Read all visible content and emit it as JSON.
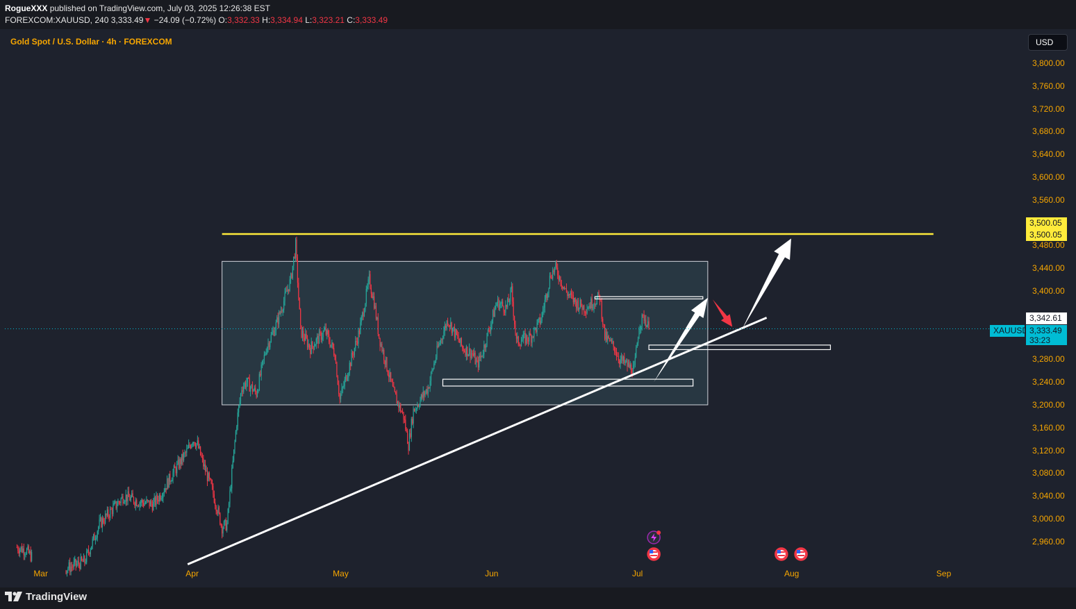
{
  "header": {
    "author": "RogueXXX",
    "published_text": "published on TradingView.com, July 03, 2025 12:26:38 EST",
    "symbol_line": "FOREXCOM:XAUUSD, 240",
    "last_price": "3,333.49",
    "change_arrow": "▼",
    "change": "−24.09 (−0.72%)",
    "o_label": "O:",
    "o_value": "3,332.33",
    "h_label": "H:",
    "h_value": "3,334.94",
    "l_label": "L:",
    "l_value": "3,323.21",
    "c_label": "C:",
    "c_value": "3,333.49"
  },
  "chart_title": "Gold Spot / U.S. Dollar · 4h · FOREXCOM",
  "currency_button": "USD",
  "price_axis": [
    "3,800.00",
    "3,760.00",
    "3,720.00",
    "3,680.00",
    "3,640.00",
    "3,600.00",
    "3,560.00",
    "3,480.00",
    "3,440.00",
    "3,400.00",
    "3,280.00",
    "3,240.00",
    "3,200.00",
    "3,160.00",
    "3,120.00",
    "3,080.00",
    "3,040.00",
    "3,000.00",
    "2,960.00"
  ],
  "time_axis": [
    "Mar",
    "Apr",
    "May",
    "Jun",
    "Jul",
    "Aug",
    "Sep"
  ],
  "tags": {
    "resistance_1": "3,500.05",
    "resistance_2": "3,500.05",
    "drawn_level": "3,342.61",
    "symbol": "XAUUSD",
    "current_price": "3,333.49",
    "countdown": "33:23"
  },
  "colors": {
    "up": "#26a69a",
    "down": "#f23645",
    "axis_text": "#f7a600",
    "resistance_line": "#ffeb3b",
    "range_box": "#2a3b47",
    "arrow_up": "#ffffff",
    "arrow_down": "#f23645",
    "price_tag": "#00bcd4"
  },
  "footer": {
    "brand": "TradingView"
  },
  "chart_data": {
    "type": "candlestick",
    "instrument": "XAUUSD",
    "timeframe": "4h",
    "ylim": [
      2940,
      3820
    ],
    "x_start": "2025-02-24",
    "path": [
      [
        "2025-02-24",
        2950
      ],
      [
        "2025-02-26",
        2945
      ],
      [
        "2025-02-28",
        2925
      ],
      [
        "2025-03-03",
        2905
      ],
      [
        "2025-03-07",
        2915
      ],
      [
        "2025-03-10",
        2925
      ],
      [
        "2025-03-13",
        2990
      ],
      [
        "2025-03-15",
        3010
      ],
      [
        "2025-03-18",
        3040
      ],
      [
        "2025-03-21",
        3030
      ],
      [
        "2025-03-24",
        3025
      ],
      [
        "2025-03-26",
        3050
      ],
      [
        "2025-03-28",
        3080
      ],
      [
        "2025-03-31",
        3120
      ],
      [
        "2025-04-01",
        3140
      ],
      [
        "2025-04-02",
        3130
      ],
      [
        "2025-04-03",
        3100
      ],
      [
        "2025-04-05",
        3050
      ],
      [
        "2025-04-07",
        2985
      ],
      [
        "2025-04-08",
        2990
      ],
      [
        "2025-04-09",
        3080
      ],
      [
        "2025-04-10",
        3170
      ],
      [
        "2025-04-11",
        3230
      ],
      [
        "2025-04-12",
        3240
      ],
      [
        "2025-04-14",
        3220
      ],
      [
        "2025-04-16",
        3300
      ],
      [
        "2025-04-18",
        3340
      ],
      [
        "2025-04-21",
        3420
      ],
      [
        "2025-04-22",
        3480
      ],
      [
        "2025-04-23",
        3330
      ],
      [
        "2025-04-25",
        3300
      ],
      [
        "2025-04-28",
        3330
      ],
      [
        "2025-04-30",
        3290
      ],
      [
        "2025-05-01",
        3210
      ],
      [
        "2025-05-02",
        3240
      ],
      [
        "2025-05-05",
        3330
      ],
      [
        "2025-05-07",
        3420
      ],
      [
        "2025-05-08",
        3380
      ],
      [
        "2025-05-09",
        3320
      ],
      [
        "2025-05-12",
        3220
      ],
      [
        "2025-05-14",
        3180
      ],
      [
        "2025-05-15",
        3130
      ],
      [
        "2025-05-16",
        3190
      ],
      [
        "2025-05-19",
        3230
      ],
      [
        "2025-05-21",
        3300
      ],
      [
        "2025-05-23",
        3350
      ],
      [
        "2025-05-26",
        3300
      ],
      [
        "2025-05-28",
        3290
      ],
      [
        "2025-05-29",
        3270
      ],
      [
        "2025-05-30",
        3290
      ],
      [
        "2025-06-02",
        3380
      ],
      [
        "2025-06-04",
        3370
      ],
      [
        "2025-06-05",
        3400
      ],
      [
        "2025-06-06",
        3310
      ],
      [
        "2025-06-09",
        3320
      ],
      [
        "2025-06-11",
        3350
      ],
      [
        "2025-06-13",
        3430
      ],
      [
        "2025-06-14",
        3440
      ],
      [
        "2025-06-16",
        3400
      ],
      [
        "2025-06-18",
        3380
      ],
      [
        "2025-06-20",
        3370
      ],
      [
        "2025-06-23",
        3390
      ],
      [
        "2025-06-24",
        3320
      ],
      [
        "2025-06-26",
        3300
      ],
      [
        "2025-06-27",
        3280
      ],
      [
        "2025-06-30",
        3260
      ],
      [
        "2025-07-01",
        3340
      ],
      [
        "2025-07-02",
        3355
      ],
      [
        "2025-07-03",
        3333.49
      ]
    ]
  },
  "annotations": {
    "range_box": {
      "price_top": 3452,
      "price_bottom": 3200,
      "from": "2025-04-07",
      "to": "2025-07-15"
    },
    "resistance": {
      "price": 3500.05,
      "from": "2025-04-07",
      "to": "2025-08-30"
    },
    "trendline": {
      "from": [
        "2025-03-31",
        2920
      ],
      "to": [
        "2025-07-27",
        3353
      ]
    }
  }
}
